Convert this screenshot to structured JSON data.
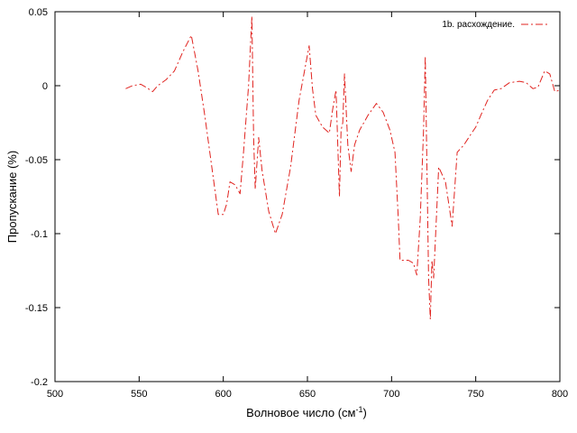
{
  "chart_data": {
    "type": "line",
    "xlabel": "Волновое число (см",
    "xlabel_sup": "-1",
    "xlabel_close": ")",
    "ylabel": "Пропускание (%)",
    "xlim": [
      500,
      800
    ],
    "ylim": [
      -0.2,
      0.05
    ],
    "x_ticks": [
      500,
      550,
      600,
      650,
      700,
      750,
      800
    ],
    "x_tick_labels": [
      "500",
      "550",
      "600",
      "650",
      "700",
      "750",
      "800"
    ],
    "y_ticks": [
      0.05,
      0,
      -0.05,
      -0.1,
      -0.15,
      -0.2
    ],
    "y_tick_labels": [
      "0.05",
      "0",
      "-0.05",
      "-0.1",
      "-0.15",
      "-0.2"
    ],
    "grid": false,
    "legend_position": "top-right",
    "series": [
      {
        "name": "1b. расхождение.",
        "color": "#e0231f",
        "line_style": "dash-dot",
        "x": [
          542,
          546,
          551,
          554,
          558,
          561,
          566,
          571,
          576,
          581,
          585,
          589,
          592,
          595,
          597,
          600,
          602,
          604,
          607,
          610,
          612,
          615,
          617,
          618,
          619,
          621,
          623,
          627,
          631,
          635,
          640,
          645,
          651,
          653,
          655,
          659,
          663,
          665,
          667,
          669,
          670,
          671,
          672,
          674,
          676,
          678,
          681,
          686,
          691,
          695,
          699,
          702,
          704,
          705,
          707,
          710,
          713,
          715,
          717,
          719,
          720,
          722,
          723,
          724,
          725,
          728,
          732,
          736,
          739,
          743,
          747,
          750,
          753,
          757,
          761,
          765,
          770,
          776,
          780,
          784,
          787,
          791,
          794,
          797,
          800
        ],
        "y": [
          -0.002,
          0.0,
          0.001,
          -0.001,
          -0.004,
          0.0,
          0.004,
          0.01,
          0.023,
          0.034,
          0.01,
          -0.02,
          -0.045,
          -0.07,
          -0.087,
          -0.087,
          -0.08,
          -0.065,
          -0.067,
          -0.073,
          -0.045,
          0.0,
          0.047,
          -0.035,
          -0.07,
          -0.035,
          -0.057,
          -0.085,
          -0.1,
          -0.087,
          -0.055,
          -0.01,
          0.027,
          -0.002,
          -0.02,
          -0.028,
          -0.032,
          -0.016,
          -0.003,
          -0.075,
          -0.03,
          -0.025,
          0.008,
          -0.04,
          -0.058,
          -0.04,
          -0.03,
          -0.02,
          -0.012,
          -0.018,
          -0.03,
          -0.045,
          -0.09,
          -0.118,
          -0.118,
          -0.118,
          -0.12,
          -0.128,
          -0.09,
          -0.03,
          0.02,
          -0.13,
          -0.158,
          -0.118,
          -0.13,
          -0.055,
          -0.065,
          -0.095,
          -0.045,
          -0.04,
          -0.033,
          -0.028,
          -0.02,
          -0.01,
          -0.003,
          -0.002,
          0.002,
          0.003,
          0.002,
          -0.002,
          -0.001,
          0.01,
          0.008,
          -0.004,
          -0.003
        ]
      }
    ]
  }
}
